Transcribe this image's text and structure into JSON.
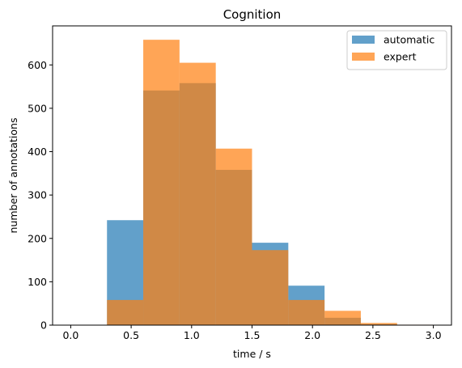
{
  "chart_data": {
    "type": "bar",
    "title": "Cognition",
    "xlabel": "time / s",
    "ylabel": "number of annotations",
    "xlim": [
      -0.15,
      3.15
    ],
    "ylim": [
      0,
      690
    ],
    "x_ticks": [
      0.0,
      0.5,
      1.0,
      1.5,
      2.0,
      2.5,
      3.0
    ],
    "x_tick_labels": [
      "0.0",
      "0.5",
      "1.0",
      "1.5",
      "2.0",
      "2.5",
      "3.0"
    ],
    "y_ticks": [
      0,
      100,
      200,
      300,
      400,
      500,
      600
    ],
    "y_tick_labels": [
      "0",
      "100",
      "200",
      "300",
      "400",
      "500",
      "600"
    ],
    "bin_edges": [
      0.0,
      0.3,
      0.6,
      0.9,
      1.2,
      1.5,
      1.8,
      2.1,
      2.4,
      2.7,
      3.0
    ],
    "series": [
      {
        "name": "automatic",
        "color": "#1f77b4",
        "values": [
          0,
          242,
          541,
          558,
          358,
          190,
          91,
          17,
          2,
          0
        ]
      },
      {
        "name": "expert",
        "color": "#ff7f0e",
        "values": [
          0,
          58,
          658,
          605,
          407,
          173,
          58,
          33,
          5,
          1
        ]
      }
    ],
    "alpha": 0.7,
    "legend_position": "upper right",
    "grid": false
  }
}
